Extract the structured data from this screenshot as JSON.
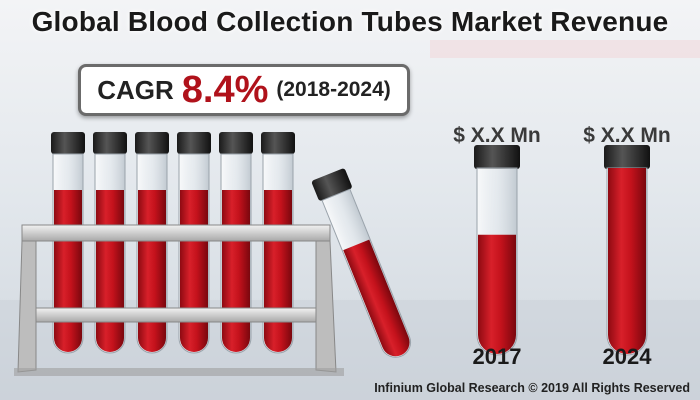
{
  "title": "Global Blood Collection Tubes Market Revenue",
  "cagr": {
    "label": "CAGR",
    "value": "8.4%",
    "period": "(2018-2024)"
  },
  "chart_data": {
    "type": "bar",
    "categories": [
      "2017",
      "2024"
    ],
    "value_labels": [
      "$ X.X Mn",
      "$ X.X Mn"
    ],
    "fill_fraction": [
      0.6,
      1.0
    ]
  },
  "footer": "Infinium Global Research © 2019 All Rights Reserved",
  "colors": {
    "blood": "#c4121c",
    "cap": "#2b2b2b",
    "accent_text": "#b0121b"
  }
}
